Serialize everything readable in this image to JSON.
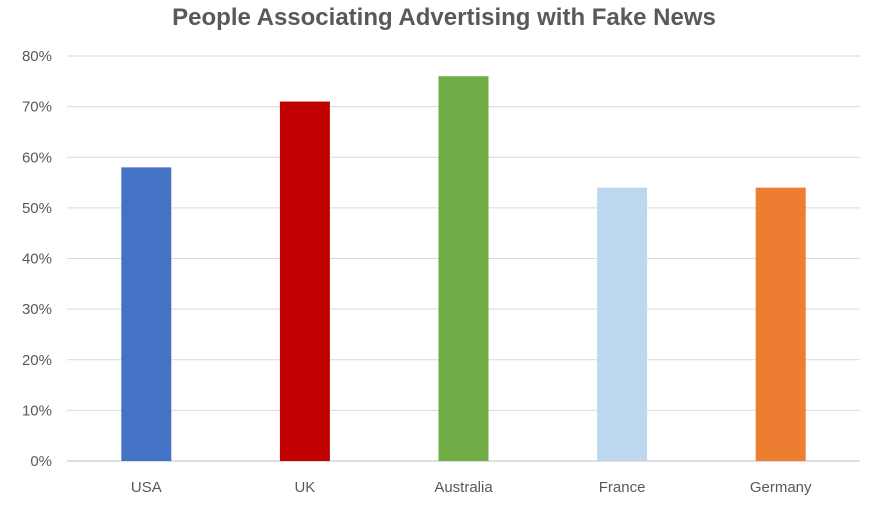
{
  "chart_data": {
    "type": "bar",
    "title": "People Associating Advertising with Fake News",
    "categories": [
      "USA",
      "UK",
      "Australia",
      "France",
      "Germany"
    ],
    "values": [
      58,
      71,
      76,
      54,
      54
    ],
    "bar_colors": [
      "#4472C4",
      "#C00000",
      "#70AD47",
      "#BDD7EE",
      "#ED7D31"
    ],
    "ylim": [
      0,
      80
    ],
    "yticks": [
      "0%",
      "10%",
      "20%",
      "30%",
      "40%",
      "50%",
      "60%",
      "70%",
      "80%"
    ],
    "grid": true,
    "legend": "none",
    "xlabel": "",
    "ylabel": ""
  }
}
